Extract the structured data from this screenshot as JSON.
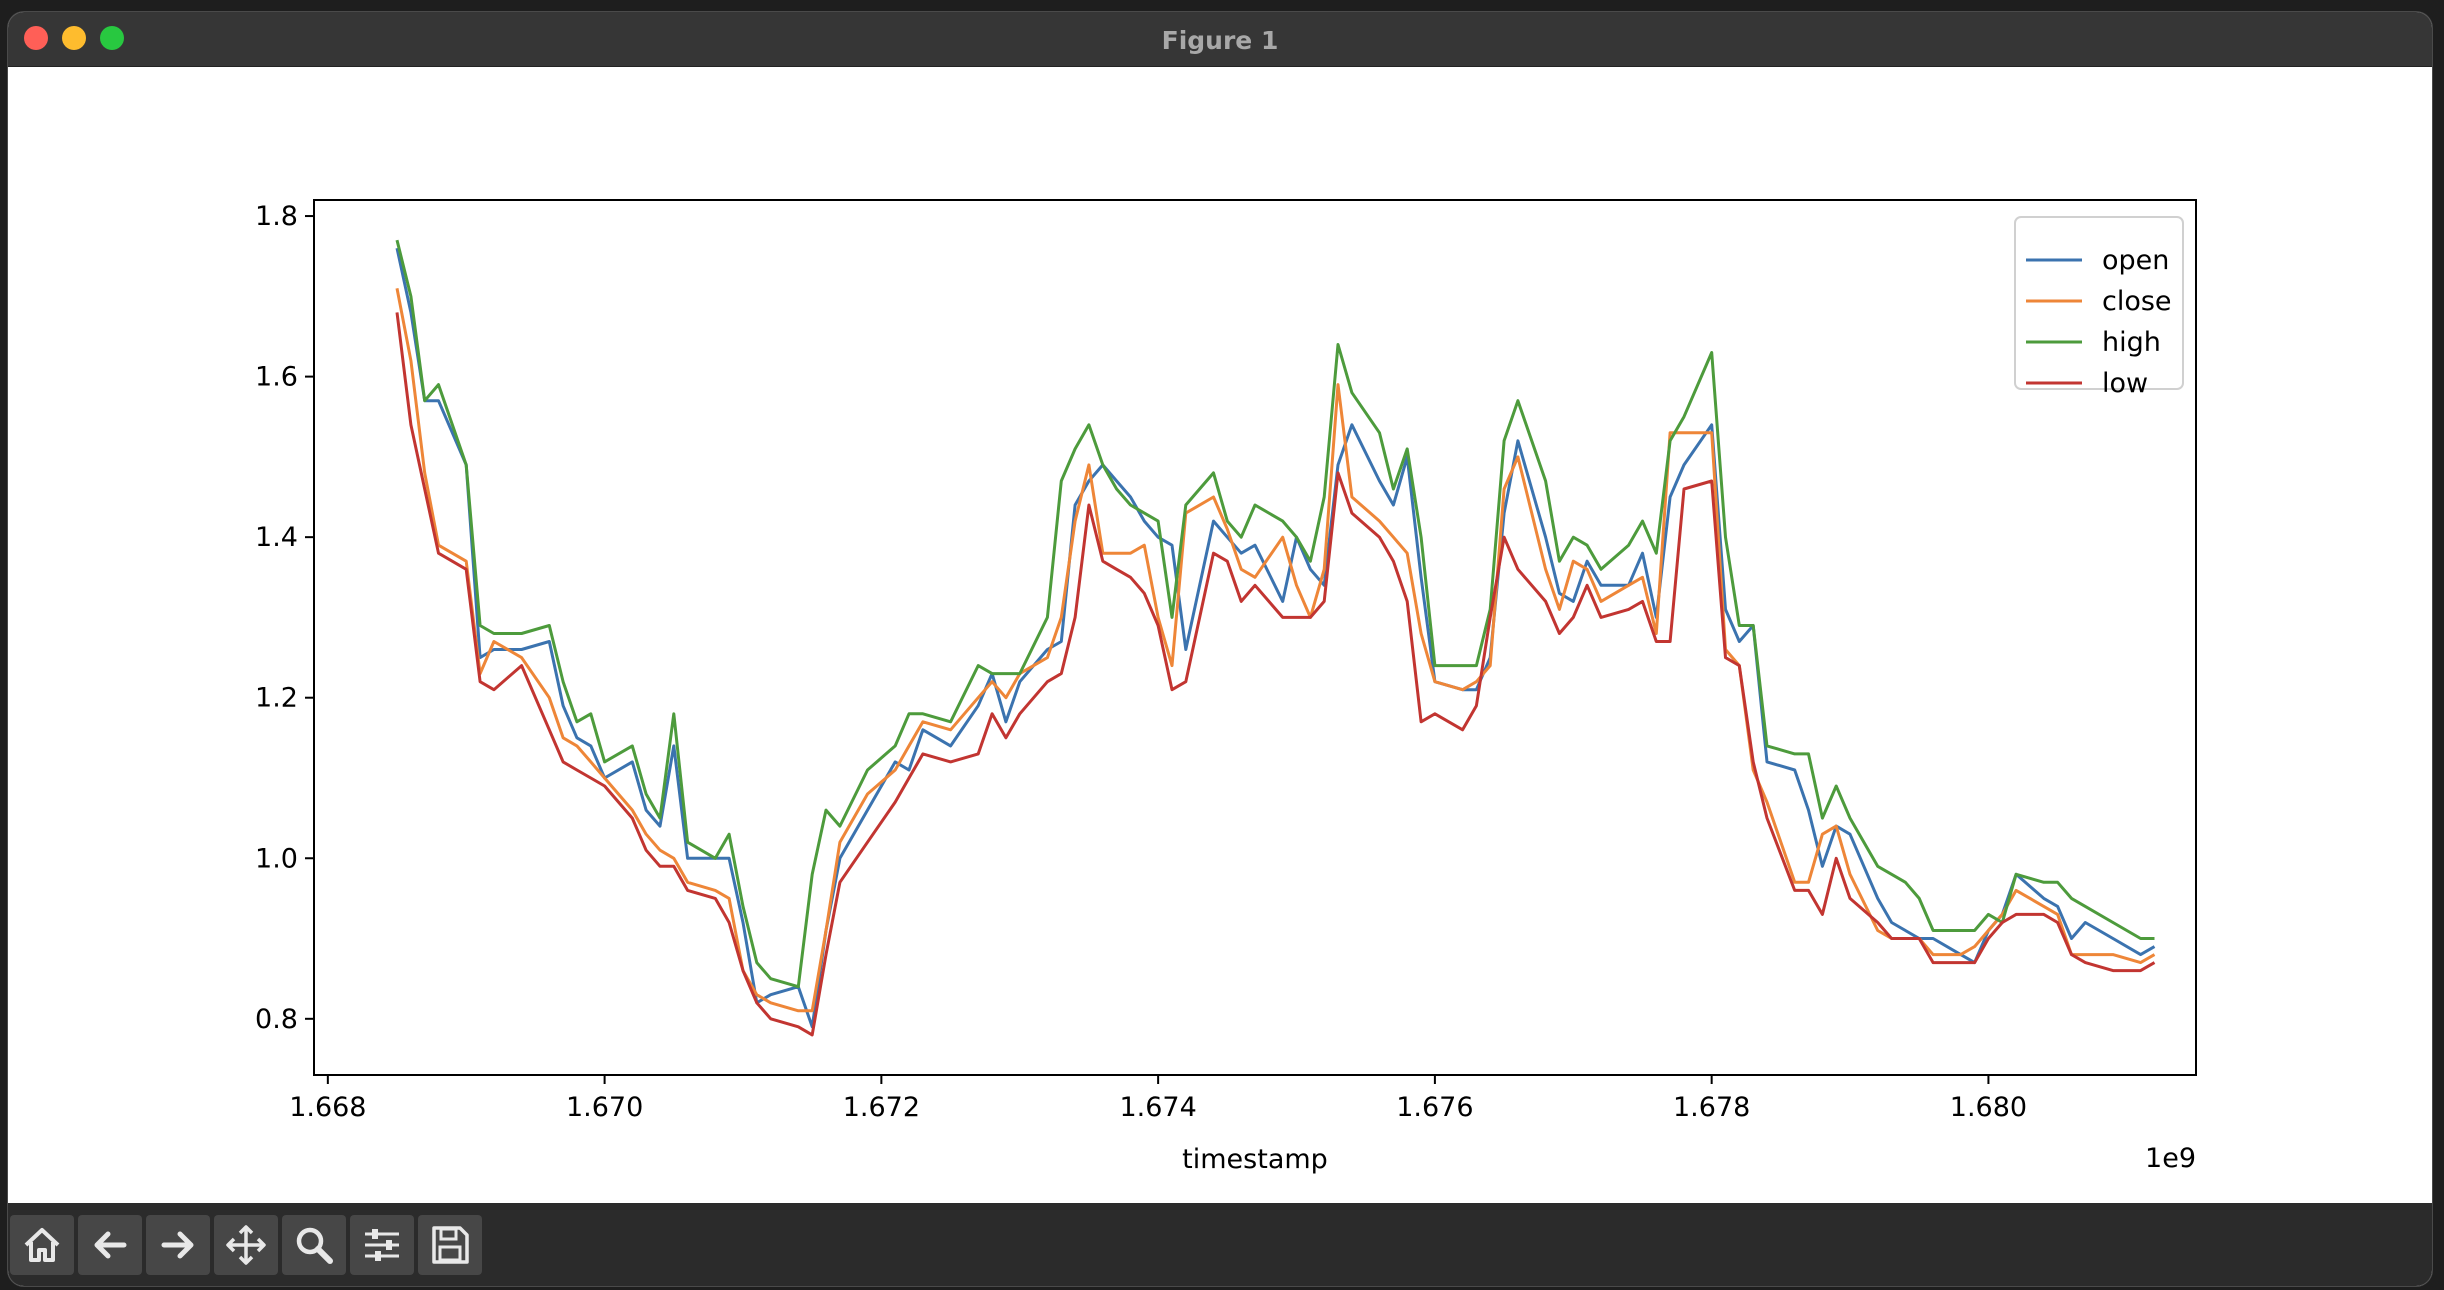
{
  "window": {
    "title": "Figure 1"
  },
  "toolbar": {
    "buttons": [
      {
        "name": "home",
        "icon": "home-icon"
      },
      {
        "name": "back",
        "icon": "arrow-left-icon"
      },
      {
        "name": "forward",
        "icon": "arrow-right-icon"
      },
      {
        "name": "pan",
        "icon": "move-icon"
      },
      {
        "name": "zoom",
        "icon": "magnifier-icon"
      },
      {
        "name": "configure",
        "icon": "sliders-icon"
      },
      {
        "name": "save",
        "icon": "floppy-icon"
      }
    ]
  },
  "chart_data": {
    "type": "line",
    "xlabel": "timestamp",
    "x_offset_label": "1e9",
    "xlim": [
      1.6679,
      1.6815
    ],
    "ylim": [
      0.73,
      1.82
    ],
    "x_ticks": [
      1.668,
      1.67,
      1.672,
      1.674,
      1.676,
      1.678,
      1.68
    ],
    "x_tick_labels": [
      "1.668",
      "1.670",
      "1.672",
      "1.674",
      "1.676",
      "1.678",
      "1.680"
    ],
    "y_ticks": [
      0.8,
      1.0,
      1.2,
      1.4,
      1.6,
      1.8
    ],
    "y_tick_labels": [
      "0.8",
      "1.0",
      "1.2",
      "1.4",
      "1.6",
      "1.8"
    ],
    "legend": "upper-right",
    "x": [
      1.6685,
      1.6686,
      1.6687,
      1.6688,
      1.669,
      1.6691,
      1.6692,
      1.6694,
      1.6696,
      1.6697,
      1.6698,
      1.6699,
      1.67,
      1.6702,
      1.6703,
      1.6704,
      1.6705,
      1.6706,
      1.6708,
      1.6709,
      1.671,
      1.6711,
      1.6712,
      1.6714,
      1.6715,
      1.6716,
      1.6717,
      1.6719,
      1.6721,
      1.6722,
      1.6723,
      1.6725,
      1.6727,
      1.6728,
      1.6729,
      1.673,
      1.6732,
      1.6733,
      1.6734,
      1.6735,
      1.6736,
      1.6737,
      1.6738,
      1.6739,
      1.674,
      1.6741,
      1.6742,
      1.6744,
      1.6745,
      1.6746,
      1.6747,
      1.6749,
      1.675,
      1.6751,
      1.6752,
      1.6753,
      1.6754,
      1.6756,
      1.6757,
      1.6758,
      1.6759,
      1.676,
      1.6762,
      1.6763,
      1.6764,
      1.6765,
      1.6766,
      1.6768,
      1.6769,
      1.677,
      1.6771,
      1.6772,
      1.6774,
      1.6775,
      1.6776,
      1.6777,
      1.6778,
      1.678,
      1.6781,
      1.6782,
      1.6783,
      1.6784,
      1.6786,
      1.6787,
      1.6788,
      1.6789,
      1.679,
      1.6792,
      1.6793,
      1.6794,
      1.6795,
      1.6796,
      1.6798,
      1.6799,
      1.68,
      1.6801,
      1.6802,
      1.6804,
      1.6805,
      1.6806,
      1.6807,
      1.6809,
      1.6811,
      1.6812
    ],
    "series": [
      {
        "name": "open",
        "color": "#3b73af",
        "values": [
          1.76,
          1.68,
          1.57,
          1.57,
          1.49,
          1.25,
          1.26,
          1.26,
          1.27,
          1.19,
          1.15,
          1.14,
          1.1,
          1.12,
          1.06,
          1.04,
          1.14,
          1.0,
          1.0,
          1.0,
          0.92,
          0.82,
          0.83,
          0.84,
          0.79,
          0.91,
          1.0,
          1.06,
          1.12,
          1.11,
          1.16,
          1.14,
          1.19,
          1.23,
          1.17,
          1.22,
          1.26,
          1.27,
          1.44,
          1.47,
          1.49,
          1.47,
          1.45,
          1.42,
          1.4,
          1.39,
          1.26,
          1.42,
          1.4,
          1.38,
          1.39,
          1.32,
          1.4,
          1.36,
          1.34,
          1.49,
          1.54,
          1.47,
          1.44,
          1.5,
          1.35,
          1.22,
          1.21,
          1.21,
          1.25,
          1.43,
          1.52,
          1.4,
          1.33,
          1.32,
          1.37,
          1.34,
          1.34,
          1.38,
          1.3,
          1.45,
          1.49,
          1.54,
          1.31,
          1.27,
          1.29,
          1.12,
          1.11,
          1.06,
          0.99,
          1.04,
          1.03,
          0.95,
          0.92,
          0.91,
          0.9,
          0.9,
          0.88,
          0.87,
          0.91,
          0.93,
          0.98,
          0.95,
          0.94,
          0.9,
          0.92,
          0.9,
          0.88,
          0.89
        ]
      },
      {
        "name": "close",
        "color": "#ee8638",
        "values": [
          1.71,
          1.62,
          1.48,
          1.39,
          1.37,
          1.23,
          1.27,
          1.25,
          1.2,
          1.15,
          1.14,
          1.12,
          1.1,
          1.06,
          1.03,
          1.01,
          1.0,
          0.97,
          0.96,
          0.95,
          0.86,
          0.83,
          0.82,
          0.81,
          0.81,
          0.91,
          1.02,
          1.08,
          1.11,
          1.14,
          1.17,
          1.16,
          1.2,
          1.22,
          1.2,
          1.23,
          1.25,
          1.3,
          1.42,
          1.49,
          1.38,
          1.38,
          1.38,
          1.39,
          1.3,
          1.24,
          1.43,
          1.45,
          1.41,
          1.36,
          1.35,
          1.4,
          1.34,
          1.3,
          1.36,
          1.59,
          1.45,
          1.42,
          1.4,
          1.38,
          1.28,
          1.22,
          1.21,
          1.22,
          1.24,
          1.46,
          1.5,
          1.36,
          1.31,
          1.37,
          1.36,
          1.32,
          1.34,
          1.35,
          1.28,
          1.53,
          1.53,
          1.53,
          1.26,
          1.24,
          1.11,
          1.07,
          0.97,
          0.97,
          1.03,
          1.04,
          0.98,
          0.91,
          0.9,
          0.9,
          0.9,
          0.88,
          0.88,
          0.89,
          0.91,
          0.93,
          0.96,
          0.94,
          0.93,
          0.88,
          0.88,
          0.88,
          0.87,
          0.88
        ]
      },
      {
        "name": "high",
        "color": "#4d9b3c",
        "values": [
          1.77,
          1.7,
          1.57,
          1.59,
          1.49,
          1.29,
          1.28,
          1.28,
          1.29,
          1.22,
          1.17,
          1.18,
          1.12,
          1.14,
          1.08,
          1.05,
          1.18,
          1.02,
          1.0,
          1.03,
          0.94,
          0.87,
          0.85,
          0.84,
          0.98,
          1.06,
          1.04,
          1.11,
          1.14,
          1.18,
          1.18,
          1.17,
          1.24,
          1.23,
          1.23,
          1.23,
          1.3,
          1.47,
          1.51,
          1.54,
          1.49,
          1.46,
          1.44,
          1.43,
          1.42,
          1.3,
          1.44,
          1.48,
          1.42,
          1.4,
          1.44,
          1.42,
          1.4,
          1.37,
          1.45,
          1.64,
          1.58,
          1.53,
          1.46,
          1.51,
          1.4,
          1.24,
          1.24,
          1.24,
          1.31,
          1.52,
          1.57,
          1.47,
          1.37,
          1.4,
          1.39,
          1.36,
          1.39,
          1.42,
          1.38,
          1.52,
          1.55,
          1.63,
          1.4,
          1.29,
          1.29,
          1.14,
          1.13,
          1.13,
          1.05,
          1.09,
          1.05,
          0.99,
          0.98,
          0.97,
          0.95,
          0.91,
          0.91,
          0.91,
          0.93,
          0.92,
          0.98,
          0.97,
          0.97,
          0.95,
          0.94,
          0.92,
          0.9,
          0.9
        ]
      },
      {
        "name": "low",
        "color": "#c23531",
        "values": [
          1.68,
          1.54,
          1.46,
          1.38,
          1.36,
          1.22,
          1.21,
          1.24,
          1.16,
          1.12,
          1.11,
          1.1,
          1.09,
          1.05,
          1.01,
          0.99,
          0.99,
          0.96,
          0.95,
          0.92,
          0.86,
          0.82,
          0.8,
          0.79,
          0.78,
          0.88,
          0.97,
          1.02,
          1.07,
          1.1,
          1.13,
          1.12,
          1.13,
          1.18,
          1.15,
          1.18,
          1.22,
          1.23,
          1.3,
          1.44,
          1.37,
          1.36,
          1.35,
          1.33,
          1.29,
          1.21,
          1.22,
          1.38,
          1.37,
          1.32,
          1.34,
          1.3,
          1.3,
          1.3,
          1.32,
          1.48,
          1.43,
          1.4,
          1.37,
          1.32,
          1.17,
          1.18,
          1.16,
          1.19,
          1.3,
          1.4,
          1.36,
          1.32,
          1.28,
          1.3,
          1.34,
          1.3,
          1.31,
          1.32,
          1.27,
          1.27,
          1.46,
          1.47,
          1.25,
          1.24,
          1.12,
          1.05,
          0.96,
          0.96,
          0.93,
          1.0,
          0.95,
          0.92,
          0.9,
          0.9,
          0.9,
          0.87,
          0.87,
          0.87,
          0.9,
          0.92,
          0.93,
          0.93,
          0.92,
          0.88,
          0.87,
          0.86,
          0.86,
          0.87
        ]
      }
    ]
  }
}
